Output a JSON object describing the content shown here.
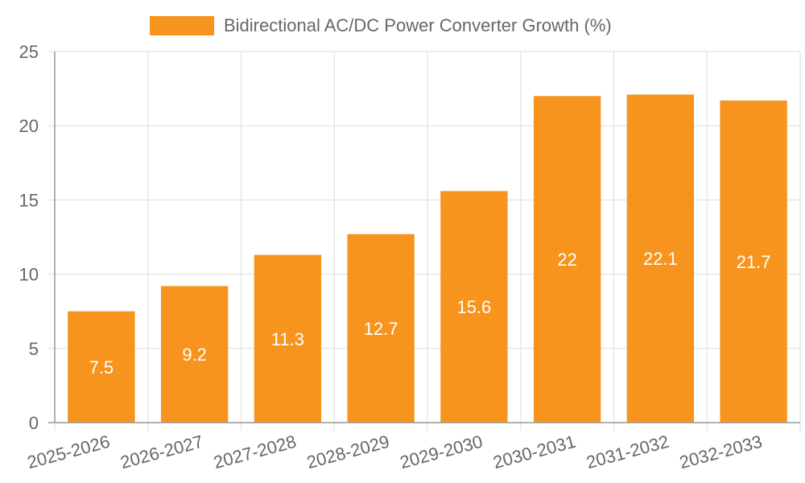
{
  "chart_data": {
    "type": "bar",
    "categories": [
      "2025-2026",
      "2026-2027",
      "2027-2028",
      "2028-2029",
      "2029-2030",
      "2030-2031",
      "2031-2032",
      "2032-2033"
    ],
    "series": [
      {
        "name": "Bidirectional AC/DC Power Converter Growth (%)",
        "values": [
          7.5,
          9.2,
          11.3,
          12.7,
          15.6,
          22,
          22.1,
          21.7
        ],
        "color": "#f7941d"
      }
    ],
    "value_labels": [
      "7.5",
      "9.2",
      "11.3",
      "12.7",
      "15.6",
      "22",
      "22.1",
      "21.7"
    ],
    "y_ticks": [
      "0",
      "5",
      "10",
      "15",
      "20",
      "25"
    ],
    "ylim": [
      0,
      25
    ],
    "grid": true,
    "legend_position": "top-center",
    "colors": {
      "bar": "#f7941d",
      "grid": "#dddddd",
      "axis": "#999999",
      "text": "#666666",
      "value_label": "#ffffff"
    }
  }
}
